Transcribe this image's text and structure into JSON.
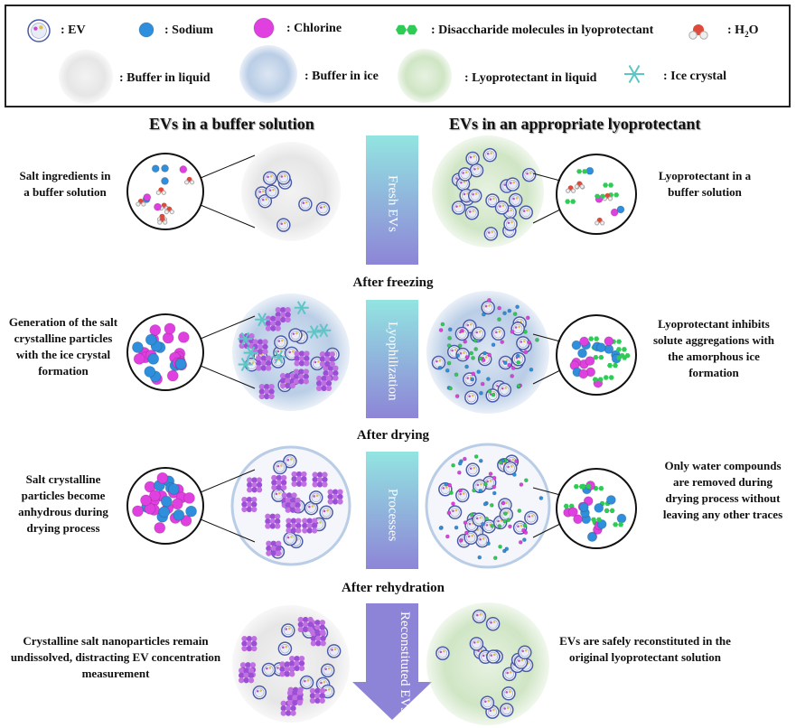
{
  "legend": {
    "ev": ": EV",
    "sodium": ": Sodium",
    "chlorine": ": Chlorine",
    "disaccharide": ": Disaccharide molecules in lyoprotectant",
    "h2o": ": H",
    "h2o_sub": "2",
    "h2o_end": "O",
    "buffer_liquid": ": Buffer in liquid",
    "buffer_ice": ": Buffer in ice",
    "lyo_liquid": ": Lyoprotectant in liquid",
    "ice_crystal": ": Ice crystal"
  },
  "headers": {
    "left": "EVs in a buffer solution",
    "right": "EVs in an appropriate lyoprotectant"
  },
  "stages": [
    "After freezing",
    "After drying",
    "After rehydration"
  ],
  "arrow_labels": [
    "Fresh EVs",
    "Lyophilization",
    "Processes",
    "Reconstituted EVs"
  ],
  "left_descriptions": [
    "Salt ingredients in a buffer solution",
    "Generation of the salt crystalline particles with the ice crystal formation",
    "Salt crystalline particles become anhydrous during drying process",
    "Crystalline salt nanoparticles remain undissolved, distracting EV concentration measurement"
  ],
  "right_descriptions": [
    "Lyoprotectant in a buffer solution",
    "Lyoprotectant inhibits solute aggregations with the amorphous ice formation",
    "Only water compounds are removed during drying process without leaving any other traces",
    "EVs are safely reconstituted in the original lyoprotectant solution"
  ],
  "colors": {
    "sodium": "#2f8fdc",
    "chlorine": "#e040e0",
    "disaccharide": "#2ecc55",
    "ice": "#5cc6c6",
    "buffer_liquid": "#e6e6e6",
    "buffer_ice": "#b9cde6",
    "lyo_liquid": "#cfe5c4",
    "salt_crystal": "#9b4fd6"
  }
}
